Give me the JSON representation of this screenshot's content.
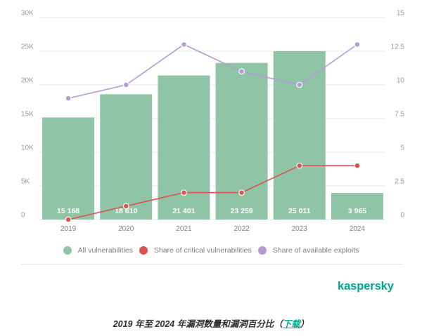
{
  "chart_data": {
    "type": "bar",
    "categories": [
      "2019",
      "2020",
      "2021",
      "2022",
      "2023",
      "2024"
    ],
    "series": [
      {
        "name": "All vulnerabilities",
        "type": "bar",
        "y_axis": "left",
        "values": [
          15168,
          18610,
          21401,
          23259,
          25011,
          3965
        ],
        "value_labels": [
          "15 168",
          "18 610",
          "21 401",
          "23 259",
          "25 011",
          "3 965"
        ],
        "color": "#8fc4a6"
      },
      {
        "name": "Share of critical vulnerabilities",
        "type": "line",
        "y_axis": "right",
        "values": [
          0,
          1,
          2,
          2,
          4,
          4
        ],
        "color": "#d9534f"
      },
      {
        "name": "Share of available exploits",
        "type": "line",
        "y_axis": "right",
        "values": [
          9,
          10,
          13,
          11,
          10,
          13
        ],
        "color": "#b49bd6"
      }
    ],
    "y_left": {
      "ylim": [
        0,
        30000
      ],
      "ticks": [
        0,
        5000,
        10000,
        15000,
        20000,
        25000,
        30000
      ],
      "tick_labels": [
        "0",
        "5K",
        "10K",
        "15K",
        "20K",
        "25K",
        "30K"
      ]
    },
    "y_right": {
      "ylim": [
        0,
        15
      ],
      "ticks": [
        0,
        2.5,
        5,
        7.5,
        10,
        12.5,
        15
      ],
      "tick_labels": [
        "0",
        "2.5",
        "5",
        "7.5",
        "10",
        "12.5",
        "15"
      ]
    },
    "grid": true,
    "legend": "bottom-center"
  },
  "brand": {
    "logo_text": "kaspersky",
    "color": "#00a88e"
  },
  "caption": {
    "text_before": "2019 年至 2024 年漏洞数量和漏洞百分比（",
    "link_text": "下载",
    "text_after": "）",
    "link_color": "#00a88e"
  }
}
